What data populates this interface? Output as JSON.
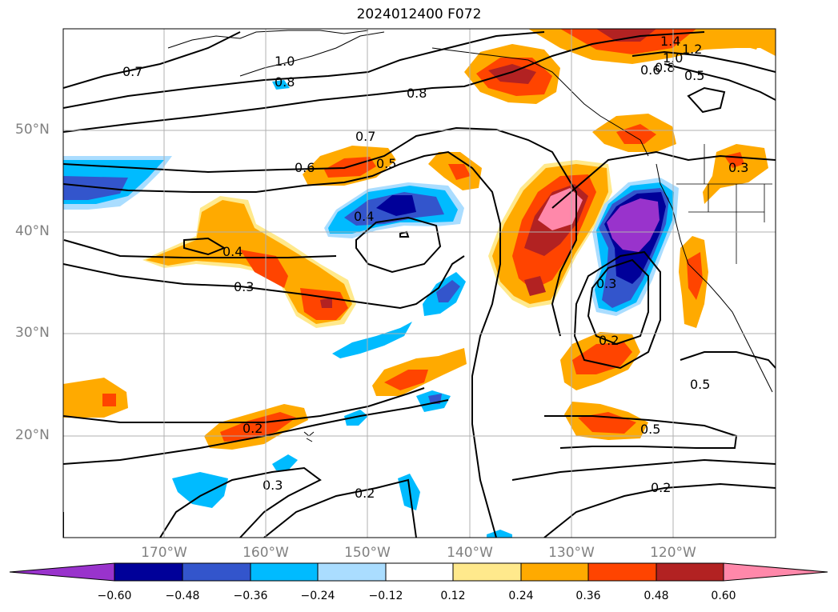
{
  "title": "2024012400 F072",
  "lat_labels": [
    "50°N",
    "40°N",
    "30°N",
    "20°N"
  ],
  "lon_labels": [
    "170°W",
    "160°W",
    "150°W",
    "140°W",
    "130°W",
    "120°W"
  ],
  "colorbar": {
    "ticks": [
      "−0.60",
      "−0.48",
      "−0.36",
      "−0.24",
      "−0.12",
      "0.12",
      "0.24",
      "0.36",
      "0.48",
      "0.60"
    ],
    "colors": [
      "#9933cc",
      "#000099",
      "#3355cc",
      "#00bbff",
      "#aaddff",
      "#ffffff",
      "#ffe98c",
      "#ffaa00",
      "#ff4400",
      "#b22222",
      "#ff88aa"
    ]
  },
  "contour_labels": [
    "0.7",
    "1.0",
    "0.8",
    "0.8",
    "1.4",
    "1.2",
    "1.0",
    "0.6",
    "0.8",
    "0.5",
    "0.7",
    "0.6",
    "0.5",
    "0.4",
    "0.4",
    "0.3",
    "0.3",
    "0.2",
    "0.5",
    "0.2",
    "0.5",
    "0.3",
    "0.2",
    "0.2",
    "0.3"
  ]
}
